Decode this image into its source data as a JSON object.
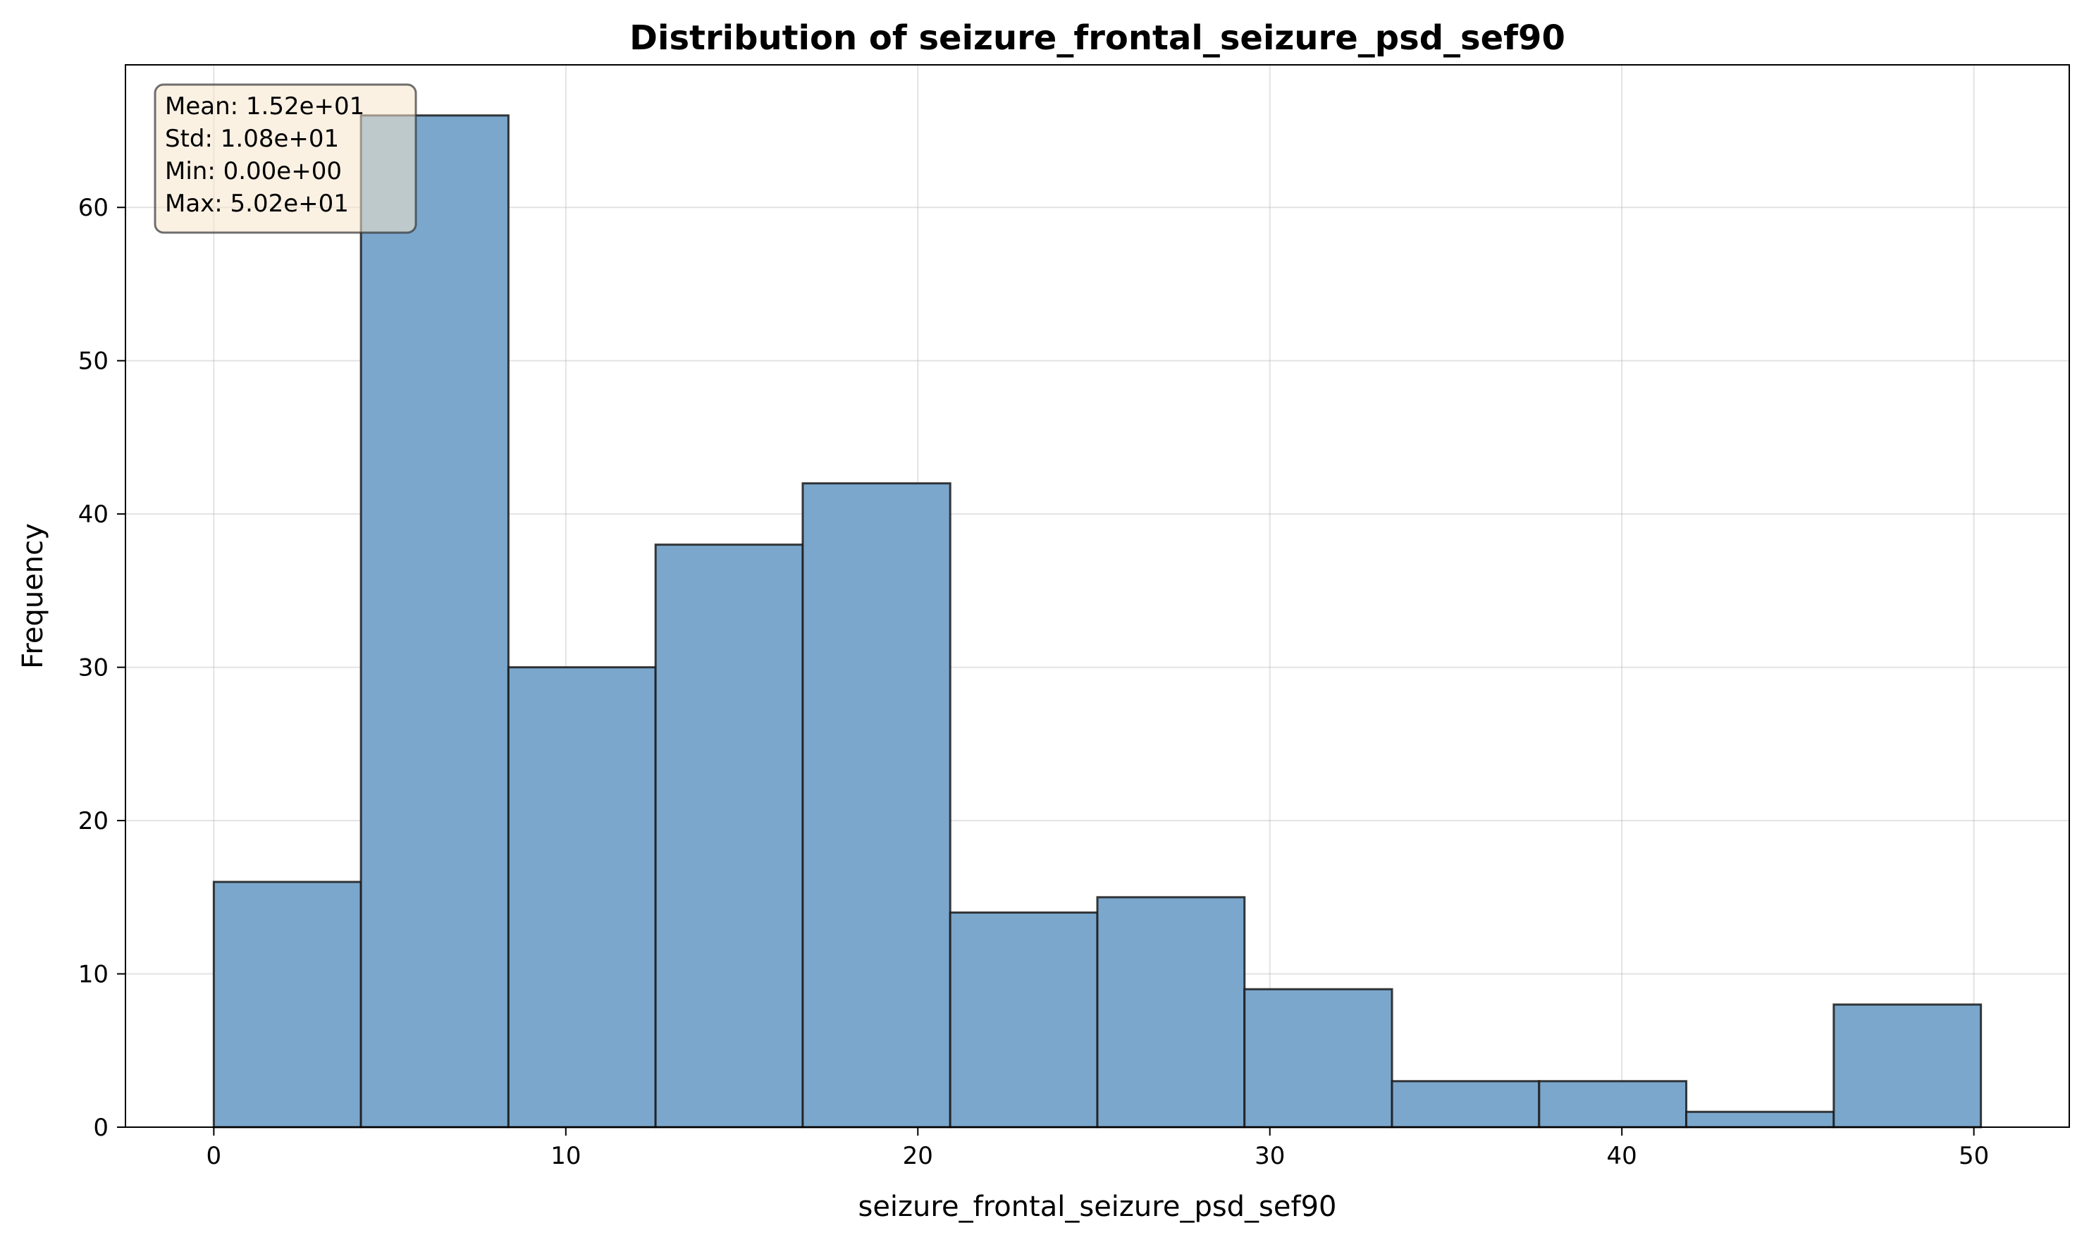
{
  "chart_data": {
    "type": "bar",
    "title": "Distribution of seizure_frontal_seizure_psd_sef90",
    "xlabel": "seizure_frontal_seizure_psd_sef90",
    "ylabel": "Frequency",
    "bins": [
      {
        "start": 0.0,
        "end": 4.18,
        "count": 16
      },
      {
        "start": 4.18,
        "end": 8.37,
        "count": 66
      },
      {
        "start": 8.37,
        "end": 12.55,
        "count": 30
      },
      {
        "start": 12.55,
        "end": 16.73,
        "count": 38
      },
      {
        "start": 16.73,
        "end": 20.92,
        "count": 42
      },
      {
        "start": 20.92,
        "end": 25.1,
        "count": 14
      },
      {
        "start": 25.1,
        "end": 29.28,
        "count": 15
      },
      {
        "start": 29.28,
        "end": 33.47,
        "count": 9
      },
      {
        "start": 33.47,
        "end": 37.65,
        "count": 3
      },
      {
        "start": 37.65,
        "end": 41.83,
        "count": 3
      },
      {
        "start": 41.83,
        "end": 46.02,
        "count": 1
      },
      {
        "start": 46.02,
        "end": 50.2,
        "count": 8
      }
    ],
    "xlim": [
      -2.51,
      52.71
    ],
    "ylim": [
      0,
      69.3
    ],
    "x_ticks": [
      0,
      10,
      20,
      30,
      40,
      50
    ],
    "y_ticks": [
      0,
      10,
      20,
      30,
      40,
      50,
      60
    ],
    "grid": true,
    "bar_color": "#7ba7cc",
    "edge_color": "#1a1a1a",
    "stats_box": {
      "lines": [
        "Mean: 1.52e+01",
        "Std: 1.08e+01",
        "Min: 0.00e+00",
        "Max: 5.02e+01"
      ],
      "background": "#f5e6cc",
      "placement": "top-left"
    }
  }
}
